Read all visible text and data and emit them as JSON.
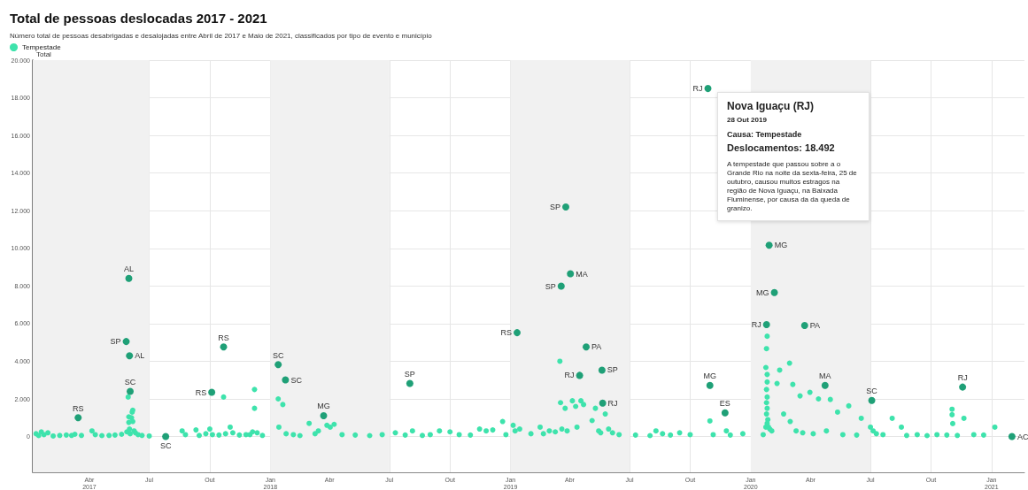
{
  "chart_data": {
    "type": "scatter",
    "title": "Total de pessoas deslocadas 2017 - 2021",
    "subtitle": "Número total de pessoas desabrigadas e desalojadas entre Abril de 2017 e Maio de 2021, classificados por tipo de evento e município",
    "ylabel": "Total",
    "legend": "top left",
    "grid": true,
    "marker": "circle",
    "xlim": [
      "2017-01-05",
      "2021-02-20"
    ],
    "xticks": [
      {
        "value": "2017-04-01",
        "label": "Abr\n2017"
      },
      {
        "value": "2017-07-01",
        "label": "Jul"
      },
      {
        "value": "2017-10-01",
        "label": "Out"
      },
      {
        "value": "2018-01-01",
        "label": "Jan\n2018"
      },
      {
        "value": "2018-04-01",
        "label": "Abr"
      },
      {
        "value": "2018-07-01",
        "label": "Jul"
      },
      {
        "value": "2018-10-01",
        "label": "Out"
      },
      {
        "value": "2019-01-01",
        "label": "Jan\n2019"
      },
      {
        "value": "2019-04-01",
        "label": "Abr"
      },
      {
        "value": "2019-07-01",
        "label": "Jul"
      },
      {
        "value": "2019-10-01",
        "label": "Out"
      },
      {
        "value": "2020-01-01",
        "label": "Jan\n2020"
      },
      {
        "value": "2020-04-01",
        "label": "Abr"
      },
      {
        "value": "2020-07-01",
        "label": "Jul"
      },
      {
        "value": "2020-10-01",
        "label": "Out"
      },
      {
        "value": "2021-01-01",
        "label": "Jan\n2021"
      }
    ],
    "ylim": [
      -1900,
      20000
    ],
    "yticks": [
      0,
      {
        "value": 2000,
        "label": "2.000"
      },
      {
        "value": 4000,
        "label": "4.000"
      },
      {
        "value": 6000,
        "label": "6.000"
      },
      {
        "value": 8000,
        "label": "8.000"
      },
      {
        "value": 10000,
        "label": "10.000"
      },
      {
        "value": 12000,
        "label": "12.000"
      },
      {
        "value": 14000,
        "label": "14.000"
      },
      {
        "value": 16000,
        "label": "16.000"
      },
      {
        "value": 18000,
        "label": "18.000"
      },
      {
        "value": 20000,
        "label": "20.000"
      }
    ],
    "bands": [
      {
        "axis": "x",
        "from": "2017-01-05",
        "to": "2017-07-01",
        "label": null,
        "color": "#f1f1f1"
      },
      {
        "axis": "x",
        "from": "2018-01-01",
        "to": "2018-07-01",
        "label": null,
        "color": "#f1f1f1"
      },
      {
        "axis": "x",
        "from": "2019-01-01",
        "to": "2019-07-01",
        "label": null,
        "color": "#f1f1f1"
      },
      {
        "axis": "x",
        "from": "2020-01-01",
        "to": "2020-07-01",
        "label": null,
        "color": "#f1f1f1"
      }
    ],
    "series": [
      {
        "name": "Tempestade",
        "color": "#3ee3ac",
        "x": [
          "2017-01-10",
          "2017-01-14",
          "2017-01-18",
          "2017-01-22",
          "2017-01-28",
          "2017-02-05",
          "2017-02-15",
          "2017-02-25",
          "2017-03-05",
          "2017-03-10",
          "2017-03-20",
          "2017-04-05",
          "2017-04-10",
          "2017-04-20",
          "2017-05-01",
          "2017-05-10",
          "2017-05-20",
          "2017-05-28",
          "2017-05-30",
          "2017-05-31",
          "2017-05-31",
          "2017-06-01",
          "2017-06-02",
          "2017-06-04",
          "2017-06-05",
          "2017-06-06",
          "2017-06-06",
          "2017-06-08",
          "2017-06-10",
          "2017-06-14",
          "2017-06-20",
          "2017-07-01",
          "2017-08-20",
          "2017-08-25",
          "2017-09-10",
          "2017-09-15",
          "2017-09-25",
          "2017-10-01",
          "2017-10-05",
          "2017-10-15",
          "2017-10-22",
          "2017-10-25",
          "2017-11-01",
          "2017-11-05",
          "2017-11-15",
          "2017-11-25",
          "2017-12-01",
          "2017-12-05",
          "2017-12-08",
          "2017-12-08",
          "2017-12-12",
          "2017-12-20",
          "2018-01-13",
          "2018-01-14",
          "2018-01-20",
          "2018-01-25",
          "2018-02-05",
          "2018-02-15",
          "2018-03-01",
          "2018-03-10",
          "2018-03-15",
          "2018-03-28",
          "2018-04-02",
          "2018-04-08",
          "2018-04-20",
          "2018-05-10",
          "2018-06-01",
          "2018-06-20",
          "2018-07-10",
          "2018-07-25",
          "2018-08-05",
          "2018-08-20",
          "2018-09-01",
          "2018-09-15",
          "2018-10-01",
          "2018-10-15",
          "2018-11-01",
          "2018-11-15",
          "2018-11-25",
          "2018-12-05",
          "2018-12-20",
          "2018-12-25",
          "2019-01-05",
          "2019-01-08",
          "2019-01-15",
          "2019-02-01",
          "2019-02-15",
          "2019-02-20",
          "2019-03-01",
          "2019-03-10",
          "2019-03-17",
          "2019-03-18",
          "2019-03-20",
          "2019-03-25",
          "2019-03-28",
          "2019-04-05",
          "2019-04-10",
          "2019-04-12",
          "2019-04-18",
          "2019-04-22",
          "2019-05-05",
          "2019-05-10",
          "2019-05-15",
          "2019-05-18",
          "2019-05-25",
          "2019-05-30",
          "2019-06-05",
          "2019-06-15",
          "2019-07-10",
          "2019-08-01",
          "2019-08-10",
          "2019-08-20",
          "2019-09-01",
          "2019-09-15",
          "2019-10-01",
          "2019-10-31",
          "2019-11-05",
          "2019-11-25",
          "2019-12-01",
          "2019-12-20",
          "2020-01-20",
          "2020-01-24",
          "2020-01-26",
          "2020-01-25",
          "2020-01-24",
          "2020-01-26",
          "2020-01-26",
          "2020-01-25",
          "2020-01-26",
          "2020-01-25",
          "2020-01-26",
          "2020-01-25",
          "2020-01-27",
          "2020-01-26",
          "2020-01-28",
          "2020-01-30",
          "2020-02-02",
          "2020-02-29",
          "2020-02-14",
          "2020-02-10",
          "2020-03-05",
          "2020-03-16",
          "2020-03-31",
          "2020-04-13",
          "2020-05-01",
          "2020-05-12",
          "2020-05-29",
          "2020-06-17",
          "2020-08-03",
          "2020-08-17",
          "2020-11-02",
          "2020-11-02",
          "2020-11-03",
          "2020-11-20",
          "2021-01-06",
          "2020-02-20",
          "2020-03-01",
          "2020-03-10",
          "2020-03-20",
          "2020-04-05",
          "2020-04-25",
          "2020-05-20",
          "2020-06-10",
          "2020-07-01",
          "2020-07-05",
          "2020-07-10",
          "2020-07-20",
          "2020-08-25",
          "2020-09-10",
          "2020-09-25",
          "2020-10-10",
          "2020-10-25",
          "2020-11-10",
          "2020-12-05",
          "2020-12-20"
        ],
        "values": [
          150,
          50,
          250,
          100,
          200,
          30,
          60,
          80,
          60,
          120,
          60,
          300,
          100,
          50,
          60,
          80,
          120,
          250,
          2100,
          1050,
          750,
          400,
          150,
          1000,
          1300,
          1400,
          800,
          300,
          200,
          100,
          60,
          30,
          300,
          100,
          350,
          60,
          150,
          400,
          100,
          80,
          2100,
          150,
          500,
          200,
          80,
          100,
          100,
          250,
          2500,
          1500,
          200,
          60,
          2000,
          500,
          1700,
          150,
          100,
          50,
          700,
          150,
          300,
          600,
          500,
          650,
          100,
          80,
          50,
          100,
          200,
          80,
          300,
          60,
          100,
          300,
          250,
          100,
          80,
          400,
          300,
          350,
          800,
          100,
          600,
          300,
          400,
          150,
          500,
          150,
          300,
          250,
          4000,
          1800,
          400,
          1500,
          300,
          1900,
          1600,
          500,
          1900,
          1700,
          850,
          1500,
          300,
          200,
          1200,
          400,
          200,
          100,
          80,
          50,
          300,
          150,
          80,
          200,
          100,
          830,
          100,
          300,
          80,
          150,
          100,
          500,
          5330,
          4670,
          3670,
          3300,
          2900,
          2500,
          2100,
          1800,
          1500,
          1200,
          900,
          700,
          500,
          400,
          300,
          3900,
          3530,
          2820,
          2770,
          2160,
          2350,
          2000,
          1970,
          1300,
          1630,
          970,
          970,
          500,
          1450,
          1160,
          690,
          970,
          500,
          1200,
          800,
          300,
          200,
          150,
          300,
          100,
          80,
          500,
          300,
          150,
          100,
          60,
          100,
          50,
          100,
          80,
          60,
          100,
          80
        ]
      },
      {
        "color": "#1fa077",
        "x": [
          "2017-03-15",
          "2017-05-31",
          "2017-05-27",
          "2017-06-01",
          "2017-06-02",
          "2017-07-26",
          "2017-10-04",
          "2017-10-22",
          "2018-01-13",
          "2018-01-24",
          "2018-03-23",
          "2018-08-01",
          "2019-01-11",
          "2019-03-26",
          "2019-04-02",
          "2019-03-19",
          "2019-04-26",
          "2019-05-20",
          "2019-04-16",
          "2019-05-21",
          "2019-10-28",
          "2020-01-29",
          "2020-02-06",
          "2020-01-25",
          "2020-03-23",
          "2019-10-31",
          "2019-11-23",
          "2020-04-23",
          "2020-07-03",
          "2020-11-18",
          "2021-02-01"
        ],
        "values": [
          1000,
          8400,
          5050,
          4290,
          2400,
          0,
          2350,
          4760,
          3820,
          3010,
          1110,
          2820,
          5520,
          12200,
          8650,
          7990,
          4760,
          3530,
          3250,
          1780,
          18492,
          10170,
          7650,
          5950,
          5900,
          2720,
          1260,
          2720,
          1920,
          2630,
          0
        ]
      }
    ],
    "annotations": [
      {
        "text": "RS",
        "x": "2017-03-15",
        "y": 1000
      },
      {
        "text": "AL",
        "x": "2017-05-31",
        "y": 8400
      },
      {
        "text": "SP",
        "x": "2017-05-27",
        "y": 5050
      },
      {
        "text": "AL",
        "x": "2017-06-01",
        "y": 4290
      },
      {
        "text": "SC",
        "x": "2017-06-02",
        "y": 2400
      },
      {
        "text": "SC",
        "x": "2017-07-26",
        "y": 0
      },
      {
        "text": "RS",
        "x": "2017-10-04",
        "y": 2350
      },
      {
        "text": "RS",
        "x": "2017-10-22",
        "y": 4760
      },
      {
        "text": "SC",
        "x": "2018-01-13",
        "y": 3820
      },
      {
        "text": "SC",
        "x": "2018-01-24",
        "y": 3010
      },
      {
        "text": "MG",
        "x": "2018-03-23",
        "y": 1110
      },
      {
        "text": "SP",
        "x": "2018-08-01",
        "y": 2820
      },
      {
        "text": "RS",
        "x": "2019-01-11",
        "y": 5520
      },
      {
        "text": "SP",
        "x": "2019-03-26",
        "y": 12200
      },
      {
        "text": "MA",
        "x": "2019-04-02",
        "y": 8650
      },
      {
        "text": "SP",
        "x": "2019-03-19",
        "y": 7990
      },
      {
        "text": "PA",
        "x": "2019-04-26",
        "y": 4760
      },
      {
        "text": "SP",
        "x": "2019-05-20",
        "y": 3530
      },
      {
        "text": "RJ",
        "x": "2019-04-16",
        "y": 3250
      },
      {
        "text": "RJ",
        "x": "2019-05-21",
        "y": 1780
      },
      {
        "text": "RJ",
        "x": "2019-10-28",
        "y": 18492
      },
      {
        "text": "MG",
        "x": "2020-01-29",
        "y": 10170
      },
      {
        "text": "MG",
        "x": "2020-02-06",
        "y": 7650
      },
      {
        "text": "RJ",
        "x": "2020-01-25",
        "y": 5950
      },
      {
        "text": "PA",
        "x": "2020-03-23",
        "y": 5900
      },
      {
        "text": "MG",
        "x": "2019-10-31",
        "y": 2720
      },
      {
        "text": "ES",
        "x": "2019-11-23",
        "y": 1260
      },
      {
        "text": "MA",
        "x": "2020-04-23",
        "y": 2720
      },
      {
        "text": "SC",
        "x": "2020-07-03",
        "y": 1920
      },
      {
        "text": "RJ",
        "x": "2020-11-18",
        "y": 2630
      },
      {
        "text": "AC",
        "x": "2021-02-01",
        "y": 0
      },
      "Nova Iguaçu (RJ)",
      "28 Out 2019",
      "Causa: Tempestade",
      "Deslocamentos: 18.492",
      "A tempestade que passou sobre a o Grande Rio na noite da sexta-feira, 25 de outubro, causou muitos estragos na região de Nova Iguaçu, na Baixada Fluminense, por causa da da queda de granizo."
    ]
  }
}
